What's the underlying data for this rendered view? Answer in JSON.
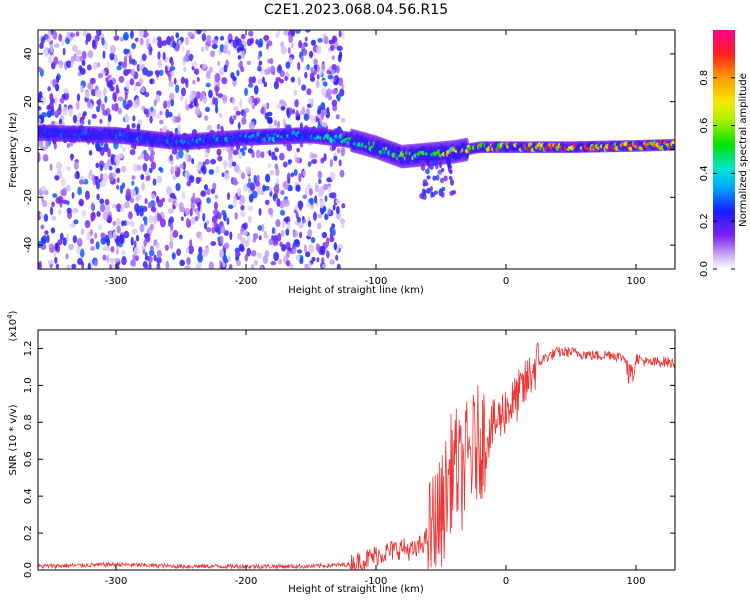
{
  "title": "C2E1.2023.068.04.56.R15",
  "chart_data": [
    {
      "type": "heatmap",
      "title": "C2E1.2023.068.04.56.R15",
      "xlabel": "Height of straight line (km)",
      "ylabel": "Frequency (Hz)",
      "xlim": [
        -360,
        130
      ],
      "ylim": [
        -50,
        50
      ],
      "xticks": [
        -300,
        -200,
        -100,
        0,
        100
      ],
      "yticks": [
        -40,
        -20,
        0,
        20,
        40
      ],
      "description_series": [
        {
          "name": "scatter_noise_region",
          "x_range": [
            -360,
            -125
          ],
          "y_range": [
            -50,
            50
          ],
          "amplitude": 0.2
        },
        {
          "name": "signal_centerline",
          "x": [
            -360,
            -300,
            -250,
            -200,
            -150,
            -120,
            -100,
            -80,
            -60,
            -40,
            -20,
            0,
            50,
            100,
            130
          ],
          "y": [
            7,
            6,
            3,
            5,
            6,
            4,
            1,
            -3,
            -2,
            -1,
            1,
            1,
            1,
            1.5,
            2
          ],
          "amplitude": [
            0.25,
            0.3,
            0.3,
            0.35,
            0.4,
            0.5,
            0.55,
            0.6,
            0.6,
            0.7,
            0.8,
            0.85,
            0.9,
            0.9,
            0.85
          ]
        }
      ],
      "colorbar": {
        "label": "Normalized spectral amplitude",
        "range": [
          0,
          1
        ],
        "ticks": [
          "0.0",
          "0.2",
          "0.4",
          "0.6",
          "0.8"
        ],
        "tick_values": [
          0,
          0.2,
          0.4,
          0.6,
          0.8
        ]
      }
    },
    {
      "type": "line",
      "xlabel": "Height of straight line (km)",
      "ylabel": "SNR (10 * v/v)",
      "yscale_label": "(x10^4)",
      "xlim": [
        -360,
        130
      ],
      "ylim": [
        0,
        1.3
      ],
      "xticks": [
        -300,
        -200,
        -100,
        0,
        100
      ],
      "yticks": [
        "0.0",
        "0.2",
        "0.4",
        "0.6",
        "0.8",
        "1.0",
        "1.2"
      ],
      "ytick_values": [
        0,
        0.2,
        0.4,
        0.6,
        0.8,
        1.0,
        1.2
      ],
      "series": [
        {
          "name": "SNR",
          "color": "#ee3333",
          "x": [
            -360,
            -300,
            -250,
            -200,
            -150,
            -120,
            -110,
            -100,
            -90,
            -80,
            -70,
            -60,
            -50,
            -45,
            -40,
            -35,
            -30,
            -25,
            -20,
            -15,
            -10,
            -5,
            0,
            5,
            10,
            15,
            20,
            25,
            30,
            40,
            50,
            60,
            70,
            80,
            90,
            95,
            100,
            110,
            120,
            130
          ],
          "y": [
            0.02,
            0.03,
            0.02,
            0.02,
            0.02,
            0.03,
            0.05,
            0.08,
            0.1,
            0.12,
            0.1,
            0.18,
            0.3,
            0.45,
            0.6,
            0.5,
            0.6,
            0.65,
            0.7,
            0.72,
            0.78,
            0.82,
            0.88,
            0.9,
            0.95,
            1.0,
            1.08,
            1.12,
            1.15,
            1.18,
            1.18,
            1.17,
            1.16,
            1.17,
            1.15,
            1.14,
            1.15,
            1.12,
            1.13,
            1.12
          ]
        }
      ]
    }
  ]
}
